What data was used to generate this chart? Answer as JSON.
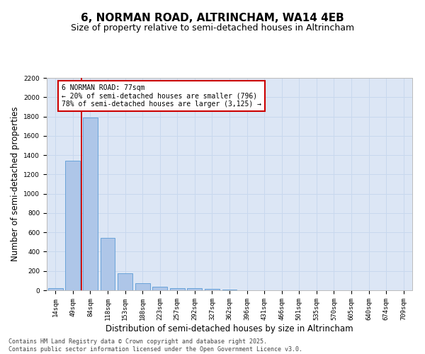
{
  "title_line1": "6, NORMAN ROAD, ALTRINCHAM, WA14 4EB",
  "title_line2": "Size of property relative to semi-detached houses in Altrincham",
  "xlabel": "Distribution of semi-detached houses by size in Altrincham",
  "ylabel": "Number of semi-detached properties",
  "categories": [
    "14sqm",
    "49sqm",
    "84sqm",
    "118sqm",
    "153sqm",
    "188sqm",
    "223sqm",
    "257sqm",
    "292sqm",
    "327sqm",
    "362sqm",
    "396sqm",
    "431sqm",
    "466sqm",
    "501sqm",
    "535sqm",
    "570sqm",
    "605sqm",
    "640sqm",
    "674sqm",
    "709sqm"
  ],
  "values": [
    25,
    1340,
    1790,
    540,
    175,
    75,
    35,
    25,
    20,
    15,
    5,
    0,
    0,
    0,
    0,
    0,
    0,
    0,
    0,
    0,
    0
  ],
  "bar_color": "#aec6e8",
  "bar_edge_color": "#5b9bd5",
  "grid_color": "#c8d8ee",
  "background_color": "#dce6f5",
  "vline_color": "#cc0000",
  "annotation_text": "6 NORMAN ROAD: 77sqm\n← 20% of semi-detached houses are smaller (796)\n78% of semi-detached houses are larger (3,125) →",
  "annotation_box_color": "#cc0000",
  "ylim": [
    0,
    2200
  ],
  "yticks": [
    0,
    200,
    400,
    600,
    800,
    1000,
    1200,
    1400,
    1600,
    1800,
    2000,
    2200
  ],
  "footer_text": "Contains HM Land Registry data © Crown copyright and database right 2025.\nContains public sector information licensed under the Open Government Licence v3.0.",
  "title_fontsize": 11,
  "subtitle_fontsize": 9,
  "tick_fontsize": 6.5,
  "label_fontsize": 8.5
}
